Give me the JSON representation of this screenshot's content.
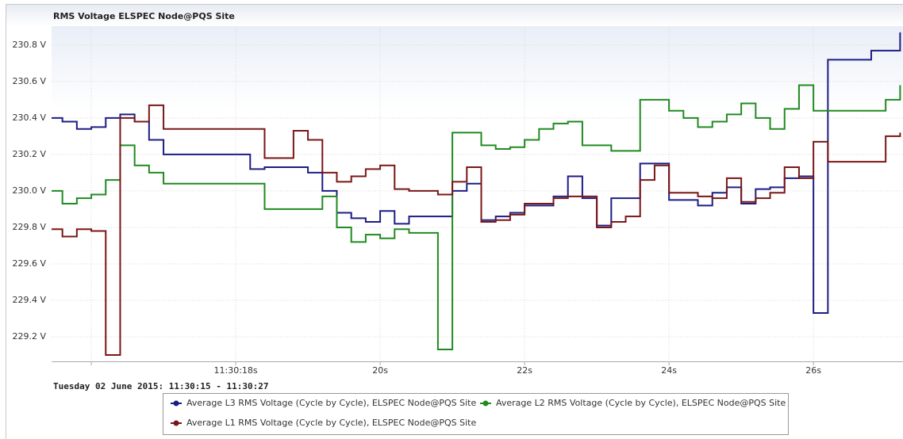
{
  "chart_data": {
    "type": "step-line",
    "title": "RMS Voltage ELSPEC Node@PQS Site",
    "subtitle": "Tuesday 02 June 2015: 11:30:15 - 11:30:27",
    "x": [
      15.4,
      15.6,
      15.8,
      16.0,
      16.2,
      16.4,
      16.6,
      16.8,
      17.0,
      17.2,
      17.4,
      17.6,
      17.8,
      18.0,
      18.2,
      18.4,
      18.6,
      18.8,
      19.0,
      19.2,
      19.4,
      19.6,
      19.8,
      20.0,
      20.2,
      20.4,
      20.6,
      20.8,
      21.0,
      21.2,
      21.4,
      21.6,
      21.8,
      22.0,
      22.2,
      22.4,
      22.6,
      22.8,
      23.0,
      23.2,
      23.4,
      23.6,
      23.8,
      24.0,
      24.2,
      24.4,
      24.6,
      24.8,
      25.0,
      25.2,
      25.4,
      25.6,
      25.8,
      26.0,
      26.2,
      26.4,
      26.6,
      26.8,
      27.0,
      27.2
    ],
    "series": [
      {
        "name": "Average L3 RMS Voltage (Cycle by Cycle), ELSPEC Node@PQS Site",
        "color": "#1c1c86",
        "values": [
          230.4,
          230.38,
          230.34,
          230.35,
          230.4,
          230.42,
          230.38,
          230.28,
          230.2,
          230.2,
          230.2,
          230.2,
          230.2,
          230.2,
          230.12,
          230.13,
          230.13,
          230.13,
          230.1,
          230.0,
          229.88,
          229.85,
          229.83,
          229.89,
          229.82,
          229.86,
          229.86,
          229.86,
          230.0,
          230.04,
          229.84,
          229.86,
          229.88,
          229.92,
          229.92,
          229.97,
          230.08,
          229.96,
          229.81,
          229.96,
          229.96,
          230.15,
          230.15,
          229.95,
          229.95,
          229.92,
          229.99,
          230.02,
          229.93,
          230.01,
          230.02,
          230.07,
          230.08,
          229.33,
          230.72,
          230.72,
          230.72,
          230.77,
          230.77,
          230.87
        ]
      },
      {
        "name": "Average L2 RMS Voltage (Cycle by Cycle), ELSPEC Node@PQS Site",
        "color": "#208a20",
        "values": [
          230.0,
          229.93,
          229.96,
          229.98,
          230.06,
          230.25,
          230.14,
          230.1,
          230.04,
          230.04,
          230.04,
          230.04,
          230.04,
          230.04,
          230.04,
          229.9,
          229.9,
          229.9,
          229.9,
          229.97,
          229.8,
          229.72,
          229.76,
          229.74,
          229.79,
          229.77,
          229.77,
          229.13,
          230.32,
          230.32,
          230.25,
          230.23,
          230.24,
          230.28,
          230.34,
          230.37,
          230.38,
          230.25,
          230.25,
          230.22,
          230.22,
          230.5,
          230.5,
          230.44,
          230.4,
          230.35,
          230.38,
          230.42,
          230.48,
          230.4,
          230.34,
          230.45,
          230.58,
          230.44,
          230.44,
          230.44,
          230.44,
          230.44,
          230.5,
          230.58
        ]
      },
      {
        "name": "Average L1 RMS Voltage (Cycle by Cycle), ELSPEC Node@PQS Site",
        "color": "#7a1616",
        "values": [
          229.79,
          229.75,
          229.79,
          229.78,
          229.1,
          230.4,
          230.38,
          230.47,
          230.34,
          230.34,
          230.34,
          230.34,
          230.34,
          230.34,
          230.34,
          230.18,
          230.18,
          230.33,
          230.28,
          230.1,
          230.05,
          230.08,
          230.12,
          230.14,
          230.01,
          230.0,
          230.0,
          229.98,
          230.05,
          230.13,
          229.83,
          229.84,
          229.87,
          229.93,
          229.93,
          229.96,
          229.97,
          229.97,
          229.8,
          229.83,
          229.86,
          230.06,
          230.14,
          229.99,
          229.99,
          229.97,
          229.96,
          230.07,
          229.94,
          229.96,
          229.99,
          230.13,
          230.07,
          230.27,
          230.16,
          230.16,
          230.16,
          230.16,
          230.3,
          230.32
        ]
      }
    ],
    "xlim": [
      15.45,
      27.24
    ],
    "xticks": [
      {
        "value": 16,
        "label": null
      },
      {
        "value": 18,
        "label": "11:30:18s"
      },
      {
        "value": 20,
        "label": "20s"
      },
      {
        "value": 22,
        "label": "22s"
      },
      {
        "value": 24,
        "label": "24s"
      },
      {
        "value": 26,
        "label": "26s"
      }
    ],
    "ylim": [
      229.065,
      230.904
    ],
    "yticks": [
      {
        "value": 229.2,
        "label": "229.2 V"
      },
      {
        "value": 229.4,
        "label": "229.4 V"
      },
      {
        "value": 229.6,
        "label": "229.6 V"
      },
      {
        "value": 229.8,
        "label": "229.8 V"
      },
      {
        "value": 230.0,
        "label": "230.0 V"
      },
      {
        "value": 230.2,
        "label": "230.2 V"
      },
      {
        "value": 230.4,
        "label": "230.4 V"
      },
      {
        "value": 230.6,
        "label": "230.6 V"
      },
      {
        "value": 230.8,
        "label": "230.8 V"
      }
    ],
    "grid": true,
    "legend": "bottom"
  }
}
